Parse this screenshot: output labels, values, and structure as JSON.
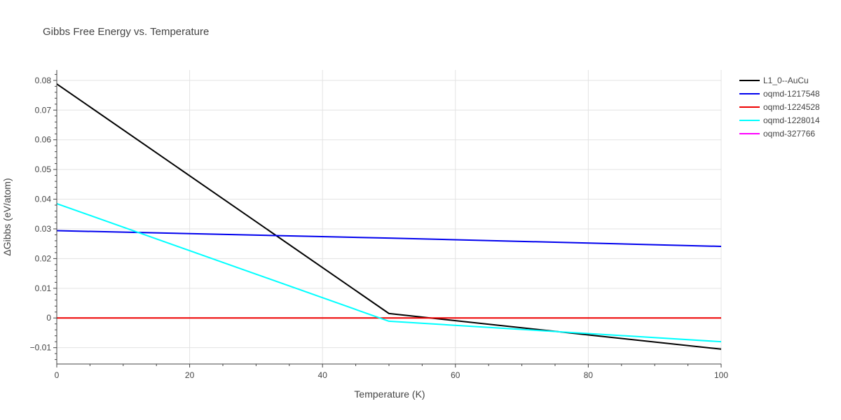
{
  "chart_data": {
    "type": "line",
    "title": "Gibbs Free Energy vs. Temperature",
    "xlabel": "Temperature (K)",
    "ylabel": "ΔGibbs (eV/atom)",
    "xlim": [
      0,
      100
    ],
    "ylim": [
      -0.0155,
      0.0835
    ],
    "x_ticks": [
      0,
      20,
      40,
      60,
      80,
      100
    ],
    "x_tick_labels": [
      "0",
      "20",
      "40",
      "60",
      "80",
      "100"
    ],
    "y_ticks": [
      -0.01,
      0,
      0.01,
      0.02,
      0.03,
      0.04,
      0.05,
      0.06,
      0.07,
      0.08
    ],
    "y_tick_labels": [
      "−0.01",
      "0",
      "0.01",
      "0.02",
      "0.03",
      "0.04",
      "0.05",
      "0.06",
      "0.07",
      "0.08"
    ],
    "grid": true,
    "legend_position": "top-right",
    "series": [
      {
        "name": "L1_0--AuCu",
        "color": "#000000",
        "x": [
          0,
          50,
          100
        ],
        "y": [
          0.0788,
          0.0015,
          -0.0105
        ]
      },
      {
        "name": "oqmd-1217548",
        "color": "#0000ee",
        "x": [
          0,
          50,
          100
        ],
        "y": [
          0.0294,
          0.0269,
          0.0241
        ]
      },
      {
        "name": "oqmd-1224528",
        "color": "#ee0000",
        "x": [
          0,
          50,
          100
        ],
        "y": [
          0.0,
          0.0,
          0.0
        ]
      },
      {
        "name": "oqmd-1228014",
        "color": "#00ffff",
        "x": [
          0,
          50,
          100
        ],
        "y": [
          0.0385,
          -0.0011,
          -0.008
        ]
      },
      {
        "name": "oqmd-327766",
        "color": "#ff00ff",
        "x": [],
        "y": []
      }
    ]
  }
}
